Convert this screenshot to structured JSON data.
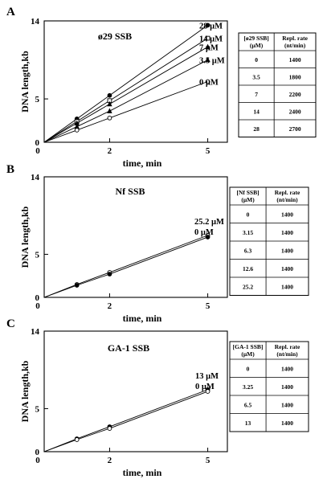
{
  "chart_data": [
    {
      "type": "line",
      "panel": "A",
      "title": "ø29 SSB",
      "xlabel": "time, min",
      "ylabel": "DNA length,kb",
      "x": [
        0,
        1,
        2,
        5
      ],
      "xticks": [
        "0",
        "2",
        "5"
      ],
      "yticks": [
        "0",
        "5",
        "14"
      ],
      "xlim": [
        0,
        5.6
      ],
      "ylim": [
        0,
        14
      ],
      "grid": false,
      "series": [
        {
          "name": "28 µM",
          "marker": "filled-circle",
          "values": [
            0,
            2.7,
            5.4,
            13.5
          ]
        },
        {
          "name": "14 µM",
          "marker": "open-square",
          "values": [
            0,
            2.4,
            4.8,
            12.0
          ]
        },
        {
          "name": "7 µM",
          "marker": "filled-triangle",
          "values": [
            0,
            2.2,
            4.4,
            11.0
          ]
        },
        {
          "name": "3.5 µM",
          "marker": "filled-triangle",
          "values": [
            0,
            1.8,
            3.6,
            9.5
          ]
        },
        {
          "name": "0 µM",
          "marker": "open-circle",
          "values": [
            0,
            1.4,
            2.8,
            7.0
          ]
        }
      ],
      "table": {
        "headers": [
          "[ø29 SSB] (µM)",
          "Repl. rate (nt/min)"
        ],
        "rows": [
          [
            "0",
            "1400"
          ],
          [
            "3.5",
            "1800"
          ],
          [
            "7",
            "2200"
          ],
          [
            "14",
            "2400"
          ],
          [
            "28",
            "2700"
          ]
        ]
      }
    },
    {
      "type": "line",
      "panel": "B",
      "title": "Nf SSB",
      "xlabel": "time, min",
      "ylabel": "DNA length,kb",
      "x": [
        0,
        1,
        2,
        5
      ],
      "xticks": [
        "0",
        "2",
        "5"
      ],
      "yticks": [
        "0",
        "5",
        "14"
      ],
      "xlim": [
        0,
        5.6
      ],
      "ylim": [
        0,
        14
      ],
      "grid": false,
      "series": [
        {
          "name": "25.2 µM",
          "marker": "open-circle",
          "values": [
            0,
            1.5,
            2.9,
            7.2
          ]
        },
        {
          "name": "0 µM",
          "marker": "filled-circle",
          "values": [
            0,
            1.4,
            2.7,
            7.0
          ]
        }
      ],
      "table": {
        "headers": [
          "[Nf SSB] (µM)",
          "Repl. rate (nt/min)"
        ],
        "rows": [
          [
            "0",
            "1400"
          ],
          [
            "3.15",
            "1400"
          ],
          [
            "6.3",
            "1400"
          ],
          [
            "12.6",
            "1400"
          ],
          [
            "25.2",
            "1400"
          ]
        ]
      }
    },
    {
      "type": "line",
      "panel": "C",
      "title": "GA-1 SSB",
      "xlabel": "time, min",
      "ylabel": "DNA length,kb",
      "x": [
        0,
        1,
        2,
        5
      ],
      "xticks": [
        "0",
        "2",
        "5"
      ],
      "yticks": [
        "0",
        "5",
        "14"
      ],
      "xlim": [
        0,
        5.6
      ],
      "ylim": [
        0,
        14
      ],
      "grid": false,
      "series": [
        {
          "name": "13 µM",
          "marker": "filled-circle",
          "values": [
            0,
            1.5,
            2.9,
            7.2
          ]
        },
        {
          "name": "0 µM",
          "marker": "open-circle",
          "values": [
            0,
            1.4,
            2.7,
            7.0
          ]
        }
      ],
      "table": {
        "headers": [
          "[GA-1 SSB] (µM)",
          "Repl. rate (nt/min)"
        ],
        "rows": [
          [
            "0",
            "1400"
          ],
          [
            "3.25",
            "1400"
          ],
          [
            "6.5",
            "1400"
          ],
          [
            "13",
            "1400"
          ]
        ]
      }
    }
  ]
}
